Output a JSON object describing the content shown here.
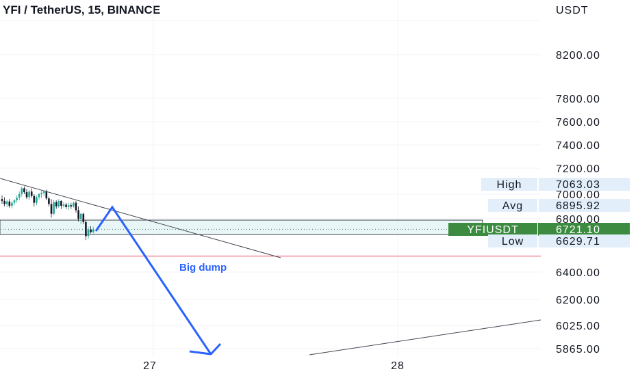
{
  "header": {
    "title": "YFI / TetherUS, 15, BINANCE"
  },
  "chart_data": {
    "type": "candlestick",
    "symbol": "YFIUSDT",
    "currency_label": "USDT",
    "y_ticks": [
      "8200.00",
      "7800.00",
      "7600.00",
      "7400.00",
      "7200.00",
      "7000.00",
      "6800.00",
      "6400.00",
      "6200.00",
      "6025.00",
      "5865.00"
    ],
    "y_tick_values": [
      8200,
      7800,
      7600,
      7400,
      7200,
      7000,
      6800,
      6400,
      6200,
      6025,
      5865
    ],
    "x_ticks": [
      "27",
      "28"
    ],
    "stats": [
      {
        "label": "High",
        "value": "7063.03",
        "price": 7063.03
      },
      {
        "label": "Avg",
        "value": "6895.92",
        "price": 6895.92
      },
      {
        "label": "YFIUSDT",
        "value": "6721.10",
        "price": 6721.1
      },
      {
        "label": "Low",
        "value": "6629.71",
        "price": 6629.71
      }
    ],
    "support_level": 6520,
    "annotation": "Big dump",
    "candles": [
      [
        6960,
        6990,
        6920,
        6945
      ],
      [
        6945,
        6975,
        6900,
        6920
      ],
      [
        6920,
        6955,
        6895,
        6940
      ],
      [
        6940,
        6960,
        6890,
        6905
      ],
      [
        6905,
        6945,
        6885,
        6930
      ],
      [
        6930,
        6960,
        6910,
        6950
      ],
      [
        6950,
        6990,
        6930,
        6970
      ],
      [
        6970,
        7020,
        6950,
        7000
      ],
      [
        7000,
        7060,
        6980,
        7045
      ],
      [
        7045,
        7060,
        7000,
        7015
      ],
      [
        7015,
        7040,
        6960,
        6975
      ],
      [
        6975,
        7030,
        6950,
        7020
      ],
      [
        7020,
        7045,
        6970,
        6985
      ],
      [
        6985,
        7000,
        6900,
        6930
      ],
      [
        6930,
        6990,
        6910,
        6975
      ],
      [
        6975,
        7010,
        6955,
        7000
      ],
      [
        7000,
        7025,
        6970,
        7010
      ],
      [
        7010,
        7030,
        6985,
        7020
      ],
      [
        7020,
        7035,
        6950,
        6965
      ],
      [
        6965,
        6980,
        6900,
        6920
      ],
      [
        6920,
        6960,
        6810,
        6840
      ],
      [
        6840,
        6950,
        6830,
        6935
      ],
      [
        6935,
        6950,
        6880,
        6900
      ],
      [
        6900,
        6960,
        6890,
        6945
      ],
      [
        6945,
        6950,
        6880,
        6905
      ],
      [
        6905,
        6935,
        6890,
        6915
      ],
      [
        6915,
        6930,
        6880,
        6895
      ],
      [
        6895,
        6930,
        6870,
        6910
      ],
      [
        6910,
        6930,
        6880,
        6900
      ],
      [
        6900,
        6940,
        6890,
        6930
      ],
      [
        6930,
        6945,
        6850,
        6870
      ],
      [
        6870,
        6900,
        6780,
        6800
      ],
      [
        6800,
        6850,
        6760,
        6840
      ],
      [
        6840,
        6850,
        6760,
        6775
      ],
      [
        6775,
        6790,
        6640,
        6670
      ],
      [
        6670,
        6740,
        6650,
        6720
      ],
      [
        6720,
        6745,
        6690,
        6700
      ],
      [
        6700,
        6740,
        6690,
        6721.1
      ]
    ]
  }
}
